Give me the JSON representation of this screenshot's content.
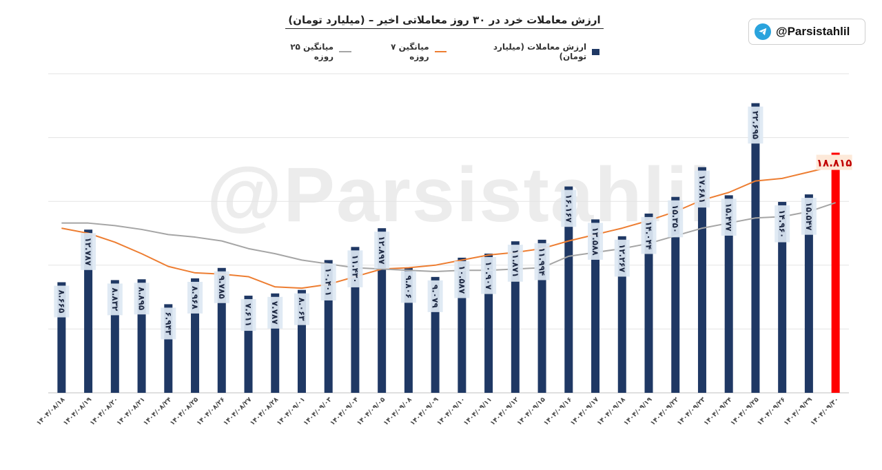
{
  "chart_data": {
    "type": "bar",
    "title": "ارزش معاملات خرد در ۳۰ روز معاملاتی اخیر – (میلیارد تومان)",
    "xlabel": "",
    "ylabel": "",
    "ylim": [
      0,
      25
    ],
    "grid": true,
    "legend_position": "top",
    "categories": [
      "۱۴۰۴/۰۸/۱۸",
      "۱۴۰۴/۰۸/۱۹",
      "۱۴۰۴/۰۸/۲۰",
      "۱۴۰۴/۰۸/۲۱",
      "۱۴۰۴/۰۸/۲۴",
      "۱۴۰۴/۰۸/۲۵",
      "۱۴۰۴/۰۸/۲۶",
      "۱۴۰۴/۰۸/۲۷",
      "۱۴۰۴/۰۸/۲۸",
      "۱۴۰۴/۰۹/۰۱",
      "۱۴۰۴/۰۹/۰۳",
      "۱۴۰۴/۰۹/۰۴",
      "۱۴۰۴/۰۹/۰۵",
      "۱۴۰۴/۰۹/۰۸",
      "۱۴۰۴/۰۹/۰۹",
      "۱۴۰۴/۰۹/۱۰",
      "۱۴۰۴/۰۹/۱۱",
      "۱۴۰۴/۰۹/۱۲",
      "۱۴۰۴/۰۹/۱۵",
      "۱۴۰۴/۰۹/۱۶",
      "۱۴۰۴/۰۹/۱۷",
      "۱۴۰۴/۰۹/۱۸",
      "۱۴۰۴/۰۹/۱۹",
      "۱۴۰۴/۰۹/۲۲",
      "۱۴۰۴/۰۹/۲۳",
      "۱۴۰۴/۰۹/۲۴",
      "۱۴۰۴/۰۹/۲۵",
      "۱۴۰۴/۰۹/۲۶",
      "۱۴۰۴/۰۹/۲۹",
      "۱۴۰۴/۰۹/۳۰"
    ],
    "series": [
      {
        "name": "ارزش معاملات (میلیارد تومان)",
        "kind": "bar",
        "color": "#1f3864",
        "highlight_color": "#ff0000",
        "values": [
          8.665,
          12.787,
          8.832,
          8.895,
          6.943,
          8.968,
          9.785,
          7.611,
          7.787,
          8.063,
          10.401,
          11.43,
          12.897,
          9.806,
          9.079,
          10.587,
          10.907,
          11.871,
          11.994,
          16.167,
          13.588,
          12.267,
          14.044,
          15.35,
          17.681,
          15.477,
          22.695,
          14.96,
          15.547,
          18.815
        ],
        "labels": [
          "۸.۶۶۵",
          "۱۲.۷۸۷",
          "۸.۸۳۲",
          "۸.۸۹۵",
          "۶.۹۴۳",
          "۸.۹۶۸",
          "۹.۷۸۵",
          "۷.۶۱۱",
          "۷.۷۸۷",
          "۸.۰۶۳",
          "۱۰.۴۰۱",
          "۱۱.۴۳۰",
          "۱۲.۸۹۷",
          "۹.۸۰۶",
          "۹.۰۷۹",
          "۱۰.۵۸۷",
          "۱۰.۹۰۷",
          "۱۱.۸۷۱",
          "۱۱.۹۹۴",
          "۱۶.۱۶۷",
          "۱۳.۵۸۸",
          "۱۲.۲۶۷",
          "۱۴.۰۴۴",
          "۱۵.۳۵۰",
          "۱۷.۶۸۱",
          "۱۵.۴۷۷",
          "۲۲.۶۹۵",
          "۱۴.۹۶۰",
          "۱۵.۵۴۷",
          "۱۸.۸۱۵"
        ]
      },
      {
        "name": "میانگین ۷ روزه",
        "kind": "line",
        "color": "#ed7d31",
        "values": [
          12.9,
          12.5,
          11.8,
          10.9,
          9.9,
          9.4,
          9.3,
          9.1,
          8.3,
          8.2,
          8.5,
          9.1,
          9.7,
          9.8,
          10.0,
          10.4,
          10.8,
          11.0,
          11.3,
          11.9,
          12.4,
          12.9,
          13.5,
          14.2,
          15.1,
          15.7,
          16.6,
          16.8,
          17.3,
          17.8
        ]
      },
      {
        "name": "میانگین ۲۵ روزه",
        "kind": "line",
        "color": "#a5a5a5",
        "values": [
          13.3,
          13.3,
          13.1,
          12.8,
          12.4,
          12.2,
          11.9,
          11.3,
          10.9,
          10.4,
          10.1,
          9.8,
          9.7,
          9.6,
          9.5,
          9.6,
          9.6,
          9.7,
          9.8,
          10.7,
          11.0,
          11.3,
          11.7,
          12.3,
          12.9,
          13.3,
          13.7,
          13.8,
          14.2,
          14.9
        ]
      }
    ]
  },
  "watermark": "@Parsistahlil",
  "branding": {
    "handle": "@Parsistahlil",
    "icon": "telegram-icon"
  }
}
